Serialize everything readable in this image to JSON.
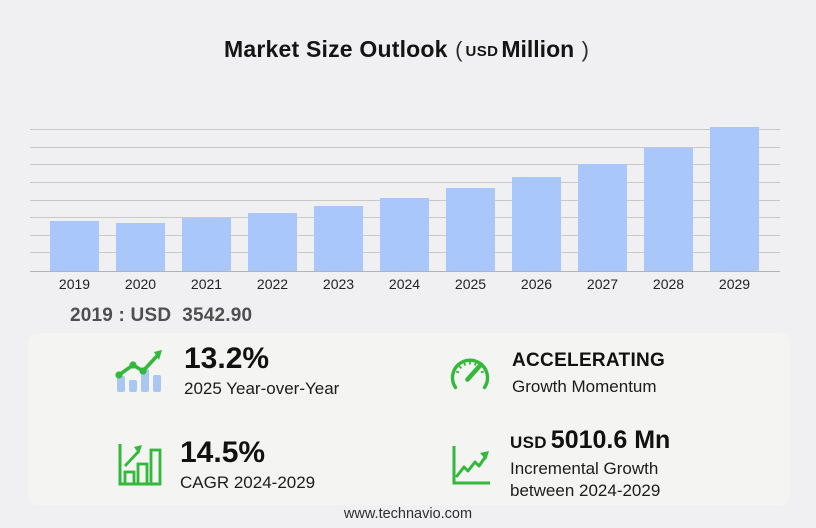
{
  "title": {
    "main": "Market Size Outlook",
    "paren_open": "(",
    "currency": "USD",
    "scale": "Million",
    "paren_close": ")"
  },
  "chart_data": {
    "type": "bar",
    "title": "Market Size Outlook (USD Million)",
    "unit": "USD Million",
    "categories": [
      "2019",
      "2020",
      "2021",
      "2022",
      "2023",
      "2024",
      "2025",
      "2026",
      "2027",
      "2028",
      "2029"
    ],
    "values": [
      3542.9,
      3400,
      3760,
      4120,
      4630,
      5175,
      5857,
      6650,
      7590,
      8750,
      10185
    ],
    "labeled_value": {
      "year": "2019",
      "value": 3542.9
    },
    "xlabel": "",
    "ylabel": "",
    "ylim": [
      0,
      10000
    ],
    "gridline_count": 8,
    "grid": "horizontal",
    "legend": "none",
    "bar_color": "#a9c7fa"
  },
  "annotation": {
    "text": "2019 : USD  3542.90"
  },
  "stats": [
    {
      "icon": "bar-line-growth-icon",
      "value": "13.2%",
      "label": "2025 Year-over-Year"
    },
    {
      "icon": "speedometer-icon",
      "value": "ACCELERATING",
      "label": "Growth Momentum"
    },
    {
      "icon": "bar-chart-arrow-icon",
      "value": "14.5%",
      "label": "CAGR 2024-2029"
    },
    {
      "icon": "axes-growth-arrow-icon",
      "value_currency": "USD",
      "value": "5010.6 Mn",
      "label_line1": "Incremental Growth",
      "label_line2": "between 2024-2029"
    }
  ],
  "footer": {
    "website": "www.technavio.com"
  },
  "colors": {
    "background": "#f0f0f2",
    "panel": "#f4f4f2",
    "bar_blue": "#a9c7fa",
    "gridline": "#c9c9c9",
    "accent_green": "#32b93c",
    "text_dark": "#111111",
    "text_annotation": "#4f4f4f"
  }
}
